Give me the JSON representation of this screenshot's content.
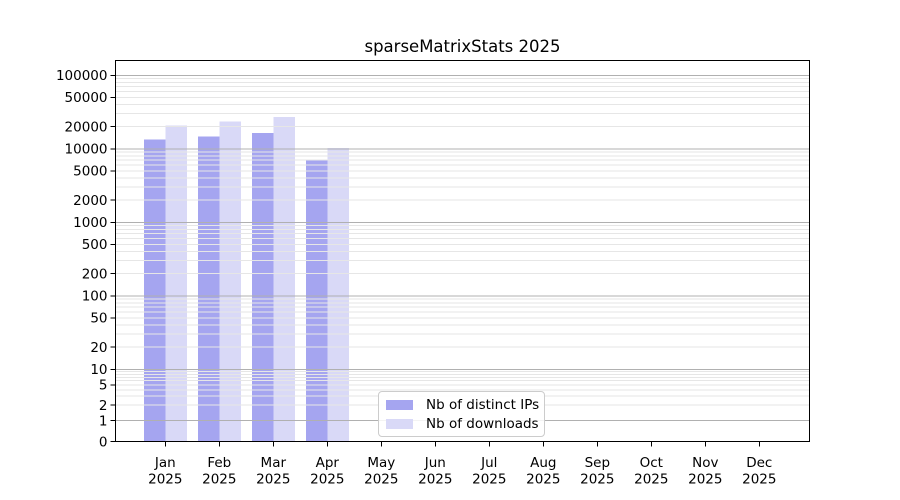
{
  "title": "sparseMatrixStats 2025",
  "colors": {
    "distinct_ips": "#a5a5f0",
    "downloads": "#d9d9f7",
    "grid_major": "#b0b0b0",
    "grid_minor": "#e6e6e6",
    "axis": "#000000",
    "legend_border": "#cccccc",
    "background": "#ffffff"
  },
  "legend": {
    "items": [
      {
        "label": "Nb of distinct IPs",
        "series": "distinct_ips"
      },
      {
        "label": "Nb of downloads",
        "series": "downloads"
      }
    ]
  },
  "chart_data": {
    "type": "bar",
    "title": "sparseMatrixStats 2025",
    "x_categories": [
      "Jan",
      "Feb",
      "Mar",
      "Apr",
      "May",
      "Jun",
      "Jul",
      "Aug",
      "Sep",
      "Oct",
      "Nov",
      "Dec"
    ],
    "x_year": "2025",
    "series": [
      {
        "key": "distinct_ips",
        "name": "Nb of distinct IPs",
        "color": "#a5a5f0",
        "values": [
          13300,
          14700,
          16300,
          6900,
          null,
          null,
          null,
          null,
          null,
          null,
          null,
          null
        ]
      },
      {
        "key": "downloads",
        "name": "Nb of downloads",
        "color": "#d9d9f7",
        "values": [
          20800,
          23400,
          26900,
          10200,
          null,
          null,
          null,
          null,
          null,
          null,
          null,
          null
        ]
      }
    ],
    "y_scale": "symlog",
    "y_ticks": [
      100000,
      50000,
      20000,
      10000,
      5000,
      2000,
      1000,
      500,
      200,
      100,
      50,
      20,
      10,
      5,
      2,
      1,
      0
    ],
    "y_major_gridlines": [
      1,
      10,
      100,
      1000,
      10000,
      100000
    ],
    "ylim": [
      0,
      158000
    ],
    "grid": true,
    "legend_position": "lower center"
  }
}
